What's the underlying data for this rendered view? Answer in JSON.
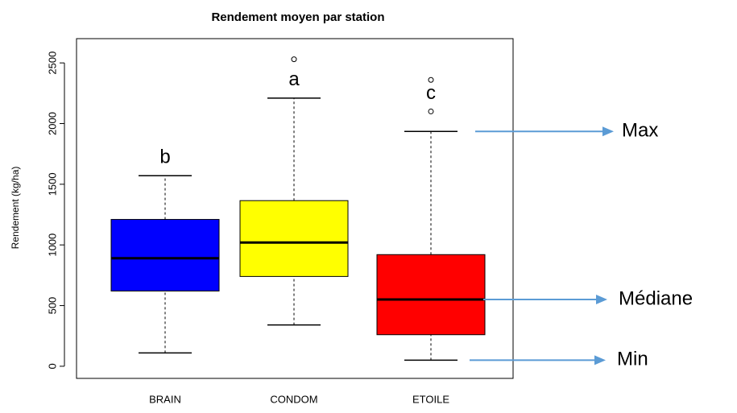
{
  "chart_data": {
    "type": "boxplot",
    "title": "Rendement moyen par station",
    "y_label": "Rendement (kg/ha)",
    "categories": [
      "BRAIN",
      "CONDOM",
      "ETOILE"
    ],
    "boxes": [
      {
        "min": 110,
        "q1": 620,
        "median": 890,
        "q3": 1210,
        "max": 1570,
        "outliers": [],
        "color": "#0000ff",
        "group": "b"
      },
      {
        "min": 340,
        "q1": 740,
        "median": 1020,
        "q3": 1365,
        "max": 2210,
        "outliers": [
          2530
        ],
        "color": "#ffff00",
        "group": "a"
      },
      {
        "min": 50,
        "q1": 260,
        "median": 550,
        "q3": 920,
        "max": 1935,
        "outliers": [
          2100,
          2360
        ],
        "color": "#ff0000",
        "group": "c"
      }
    ],
    "ylim": [
      -100,
      2700
    ],
    "yticks": [
      0,
      500,
      1000,
      1500,
      2000,
      2500
    ],
    "annotations": {
      "max": "Max",
      "median": "Médiane",
      "min": "Min"
    },
    "arrow_color": "#5b9bd5"
  }
}
